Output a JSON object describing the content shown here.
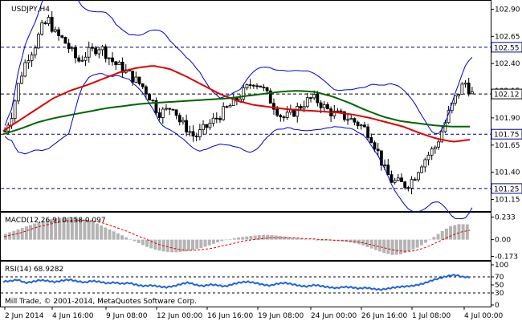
{
  "chart_data": [
    {
      "type": "candlestick",
      "title": "USDJPY,H4",
      "ylim": [
        101.05,
        102.97
      ],
      "price_ticks": [
        102.9,
        102.65,
        102.4,
        102.15,
        101.9,
        101.65,
        101.4,
        101.15
      ],
      "x_ticks": [
        "2 Jun 2014",
        "4 Jun 16:00",
        "9 Jun 08:00",
        "12 Jun 00:00",
        "16 Jun 16:00",
        "19 Jun 08:00",
        "24 Jun 00:00",
        "26 Jun 16:00",
        "1 Jul 08:00",
        "4 Jul 00:00"
      ],
      "horizontal_levels": [
        {
          "value": 102.55,
          "label": "102.55",
          "color": "#000080"
        },
        {
          "value": 102.12,
          "label": "102.12",
          "color": "#000000"
        },
        {
          "value": 101.75,
          "label": "101.75",
          "color": "#000080"
        },
        {
          "value": 101.25,
          "label": "101.25",
          "color": "#000080"
        }
      ],
      "close_path": [
        101.78,
        101.95,
        102.25,
        102.45,
        102.55,
        102.72,
        102.8,
        102.66,
        102.62,
        102.52,
        102.42,
        102.48,
        102.52,
        102.56,
        102.48,
        102.4,
        102.36,
        102.3,
        102.24,
        102.18,
        102.08,
        101.95,
        101.96,
        102.02,
        101.86,
        101.8,
        101.72,
        101.78,
        101.84,
        101.9,
        101.96,
        102.02,
        102.08,
        102.16,
        102.24,
        102.2,
        102.1,
        102.0,
        101.9,
        101.92,
        101.98,
        102.04,
        102.08,
        102.05,
        101.98,
        101.94,
        101.92,
        101.9,
        101.86,
        101.82,
        101.75,
        101.6,
        101.42,
        101.32,
        101.3,
        101.28,
        101.35,
        101.48,
        101.56,
        101.64,
        101.8,
        101.98,
        102.12,
        102.23,
        102.12
      ],
      "moving_averages": [
        {
          "color": "#e00000",
          "values": [
            101.78,
            101.88,
            101.98,
            102.08,
            102.15,
            102.2,
            102.26,
            102.32,
            102.36,
            102.38,
            102.35,
            102.28,
            102.2,
            102.12,
            102.06,
            102.02,
            102.0,
            101.98,
            101.97,
            101.96,
            101.95,
            101.93,
            101.9,
            101.86,
            101.82,
            101.76,
            101.71,
            101.68,
            101.7
          ]
        },
        {
          "color": "#006400",
          "values": [
            101.75,
            101.8,
            101.86,
            101.9,
            101.93,
            101.96,
            101.99,
            102.01,
            102.03,
            102.04,
            102.05,
            102.06,
            102.07,
            102.08,
            102.1,
            102.12,
            102.14,
            102.15,
            102.14,
            102.1,
            102.04,
            101.97,
            101.91,
            101.87,
            101.85,
            101.83,
            101.82,
            101.82
          ]
        }
      ],
      "bollinger_bands": {
        "color": "#0000cc"
      }
    },
    {
      "type": "histogram",
      "title": "MACD(12,26,9) 0.158 0.097",
      "ylim": [
        -0.21,
        0.27
      ],
      "y_ticks": [
        0.233,
        0.0,
        -0.173
      ],
      "y_tick_labels": [
        "0.233",
        "0.00",
        "-0.173"
      ],
      "macd": [
        0.06,
        0.09,
        0.12,
        0.15,
        0.18,
        0.2,
        0.22,
        0.23,
        0.23,
        0.22,
        0.2,
        0.17,
        0.13,
        0.09,
        0.05,
        0.01,
        -0.03,
        -0.07,
        -0.1,
        -0.12,
        -0.13,
        -0.13,
        -0.12,
        -0.1,
        -0.08,
        -0.05,
        -0.02,
        0.0,
        0.02,
        0.03,
        0.04,
        0.05,
        0.05,
        0.04,
        0.03,
        0.02,
        0.01,
        0.0,
        -0.01,
        -0.01,
        -0.01,
        -0.02,
        -0.03,
        -0.05,
        -0.08,
        -0.11,
        -0.14,
        -0.16,
        -0.15,
        -0.12,
        -0.08,
        -0.03,
        0.03,
        0.09,
        0.14,
        0.16,
        0.158
      ],
      "signal": [
        0.03,
        0.05,
        0.07,
        0.1,
        0.13,
        0.15,
        0.17,
        0.19,
        0.2,
        0.2,
        0.2,
        0.19,
        0.17,
        0.14,
        0.11,
        0.08,
        0.04,
        0.01,
        -0.03,
        -0.06,
        -0.08,
        -0.1,
        -0.11,
        -0.11,
        -0.1,
        -0.09,
        -0.07,
        -0.05,
        -0.03,
        -0.01,
        0.0,
        0.01,
        0.02,
        0.02,
        0.02,
        0.02,
        0.01,
        0.01,
        0.0,
        0.0,
        -0.01,
        -0.01,
        -0.02,
        -0.03,
        -0.05,
        -0.07,
        -0.09,
        -0.11,
        -0.12,
        -0.12,
        -0.1,
        -0.07,
        -0.03,
        0.01,
        0.05,
        0.08,
        0.097
      ]
    },
    {
      "type": "line",
      "title": "RSI(14) 68.9282",
      "ylim": [
        0,
        100
      ],
      "y_ticks": [
        100,
        70,
        50,
        30,
        0
      ],
      "y_tick_labels": [
        "100",
        "70",
        "50",
        "30",
        "0"
      ],
      "levels": [
        70,
        30
      ],
      "values": [
        58,
        60,
        63,
        55,
        58,
        62,
        60,
        57,
        61,
        63,
        59,
        56,
        60,
        58,
        54,
        56,
        53,
        55,
        50,
        47,
        49,
        46,
        44,
        47,
        52,
        56,
        50,
        47,
        51,
        49,
        46,
        52,
        56,
        58,
        55,
        51,
        48,
        53,
        55,
        52,
        48,
        46,
        50,
        47,
        44,
        42,
        45,
        44,
        41,
        43,
        40,
        38,
        41,
        44,
        46,
        47,
        50,
        55,
        62,
        67,
        72,
        75,
        70,
        68.9282
      ]
    }
  ],
  "copyright": "Mill Trade, © 2001-2014, MetaQuotes Software Corp."
}
